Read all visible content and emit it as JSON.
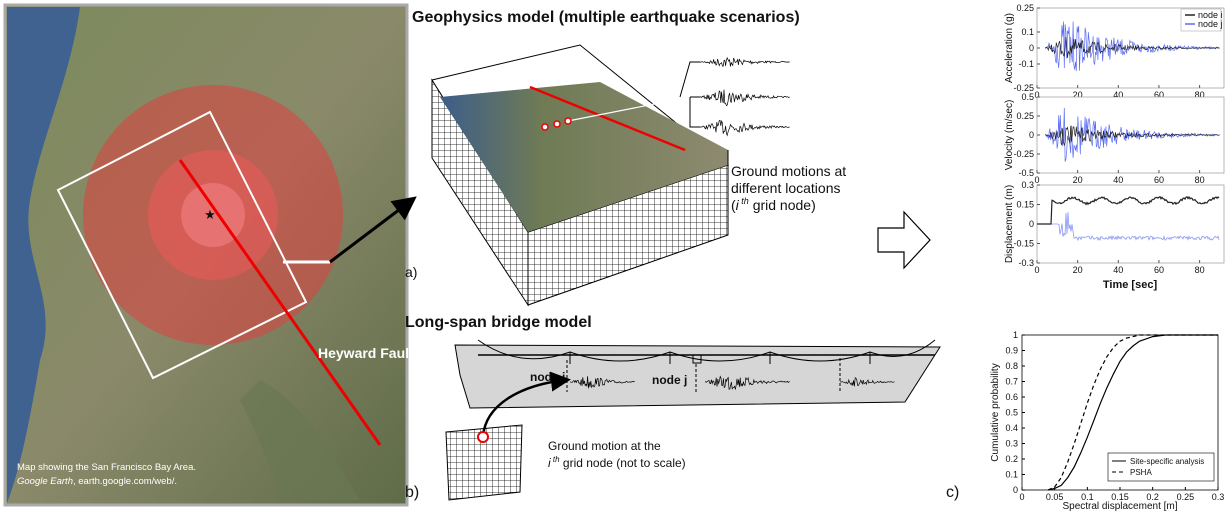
{
  "map": {
    "fault_label": "Heyward Fault",
    "caption_line1": "Map showing the San Francisco Bay Area.",
    "caption_source": "Google Earth",
    "caption_rest": ", earth.google.com/web/."
  },
  "panel_a": {
    "letter": "a)",
    "title": "Geophysics model (multiple earthquake scenarios)",
    "note_line1": "Ground motions at",
    "note_line2": "different locations",
    "note_line3": [
      "(",
      "i",
      " th",
      " grid node)"
    ]
  },
  "panel_b": {
    "letter": "b)",
    "title": "Long-span bridge model",
    "node_i": "node i",
    "node_j": "node j",
    "note_line1": "Ground motion at the",
    "note_line2": [
      "i",
      " th",
      " grid node (not to scale)"
    ]
  },
  "panel_c": {
    "letter": "c)",
    "xlabel": "Time [sec]",
    "series": [
      {
        "name": "node i",
        "color": "#222222"
      },
      {
        "name": "node j",
        "color": "#5a6cf2"
      }
    ],
    "plots": [
      {
        "ylabel": "Acceleration (g)",
        "xlim": [
          0,
          92
        ],
        "ylim": [
          -0.25,
          0.25
        ],
        "xticks": [
          0,
          20,
          40,
          60,
          80
        ],
        "yticks": [
          -0.25,
          -0.1,
          0,
          0.1,
          0.25
        ]
      },
      {
        "ylabel": "Velocity (m/sec)",
        "xlim": [
          0,
          92
        ],
        "ylim": [
          -0.5,
          0.5
        ],
        "xticks": [
          0,
          20,
          40,
          60,
          80
        ],
        "yticks": [
          -0.5,
          -0.25,
          0,
          0.25,
          0.5
        ]
      },
      {
        "ylabel": "Displacement (m)",
        "xlim": [
          0,
          92
        ],
        "ylim": [
          -0.3,
          0.3
        ],
        "xticks": [
          0,
          20,
          40,
          60,
          80
        ],
        "yticks": [
          -0.3,
          -0.15,
          0,
          0.15,
          0.3
        ]
      }
    ],
    "cdf": {
      "xlabel": "Spectral displacement [m]",
      "ylabel": "Cumulative probability",
      "xlim": [
        0,
        0.3
      ],
      "ylim": [
        0,
        1
      ],
      "xticks": [
        0,
        0.05,
        0.1,
        0.15,
        0.2,
        0.25,
        0.3
      ],
      "yticks": [
        0,
        0.1,
        0.2,
        0.3,
        0.4,
        0.5,
        0.6,
        0.7,
        0.8,
        0.9,
        1
      ],
      "x": [
        0.04,
        0.05,
        0.06,
        0.07,
        0.08,
        0.09,
        0.1,
        0.11,
        0.12,
        0.13,
        0.14,
        0.15,
        0.16,
        0.17,
        0.18,
        0.2,
        0.22,
        0.25,
        0.3
      ],
      "series": [
        {
          "name": "Site-specific analysis",
          "color": "#000000",
          "dashed": false,
          "values": [
            0,
            0.01,
            0.03,
            0.08,
            0.15,
            0.24,
            0.34,
            0.45,
            0.56,
            0.66,
            0.75,
            0.83,
            0.89,
            0.93,
            0.96,
            0.99,
            1,
            1,
            1
          ]
        },
        {
          "name": "PSHA",
          "color": "#000000",
          "dashed": true,
          "values": [
            0,
            0.02,
            0.08,
            0.18,
            0.3,
            0.43,
            0.56,
            0.68,
            0.78,
            0.86,
            0.92,
            0.96,
            0.98,
            0.99,
            1,
            1,
            1,
            1,
            1
          ]
        }
      ]
    }
  }
}
